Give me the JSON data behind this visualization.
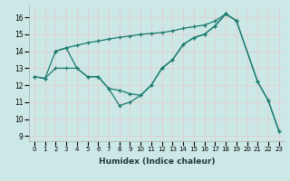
{
  "xlabel": "Humidex (Indice chaleur)",
  "bg_color": "#cce8e6",
  "grid_color": "#e8c8c8",
  "line_color": "#1a7a6e",
  "ylim": [
    8.7,
    16.7
  ],
  "xlim": [
    -0.5,
    23.5
  ],
  "yticks": [
    9,
    10,
    11,
    12,
    13,
    14,
    15,
    16
  ],
  "xticks": [
    0,
    1,
    2,
    3,
    4,
    5,
    6,
    7,
    8,
    9,
    10,
    11,
    12,
    13,
    14,
    15,
    16,
    17,
    18,
    19,
    20,
    21,
    22,
    23
  ],
  "line1_x": [
    0,
    1,
    2,
    3,
    4,
    5,
    6,
    7,
    8,
    9,
    10,
    11,
    12,
    13,
    14,
    15,
    16,
    17,
    18,
    19,
    21,
    22,
    23
  ],
  "line1_y": [
    12.5,
    12.4,
    14.0,
    14.2,
    13.0,
    12.5,
    12.5,
    11.8,
    10.8,
    11.0,
    11.4,
    12.0,
    13.0,
    13.5,
    14.4,
    14.8,
    15.0,
    15.5,
    16.2,
    15.8,
    12.2,
    11.1,
    9.3
  ],
  "line2_x": [
    2,
    3,
    4,
    5,
    6,
    7,
    8,
    9,
    10,
    11,
    12,
    13,
    14,
    15,
    16,
    17,
    18,
    19,
    21,
    22,
    23
  ],
  "line2_y": [
    14.0,
    14.2,
    14.35,
    14.5,
    14.6,
    14.72,
    14.82,
    14.9,
    15.0,
    15.05,
    15.1,
    15.2,
    15.35,
    15.45,
    15.55,
    15.78,
    16.2,
    15.8,
    12.2,
    11.1,
    9.3
  ],
  "line3_x": [
    0,
    1,
    2,
    3,
    4,
    5,
    6,
    7,
    8,
    9,
    10,
    11,
    12,
    13,
    14,
    15,
    16,
    17,
    18,
    19
  ],
  "line3_y": [
    12.5,
    12.4,
    13.0,
    13.0,
    13.0,
    12.5,
    12.5,
    11.8,
    11.7,
    11.5,
    11.4,
    12.0,
    13.0,
    13.5,
    14.4,
    14.8,
    15.0,
    15.5,
    16.2,
    15.8
  ]
}
